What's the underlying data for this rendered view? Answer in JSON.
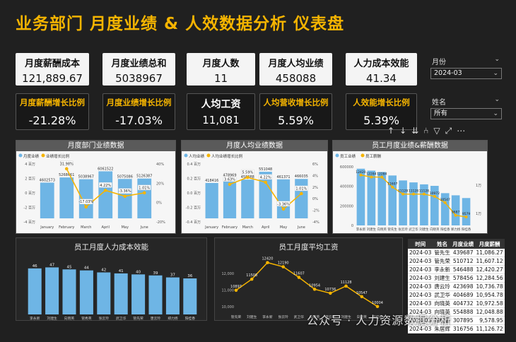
{
  "title": "业务部门 月度业绩 & 人效数据分析 仪表盘",
  "kpis": [
    {
      "label": "月度薪酬成本",
      "value": "121,889.67"
    },
    {
      "label": "月度业绩总和",
      "value": "5038967"
    },
    {
      "label": "月度人数",
      "value": "11"
    },
    {
      "label": "月度人均业绩",
      "value": "458088"
    },
    {
      "label": "人力成本效能",
      "value": "41.34"
    },
    {
      "label": "月度薪酬增长比例",
      "value": "-21.28%"
    },
    {
      "label": "月度业绩增长比例",
      "value": "-17.03%"
    },
    {
      "label": "人均工资",
      "value": "11,081"
    },
    {
      "label": "人均营收增长比例",
      "value": "5.59%"
    },
    {
      "label": "人效能增长比例",
      "value": "5.39%"
    }
  ],
  "slicers": {
    "month": {
      "title": "月份",
      "value": "2024-03"
    },
    "name": {
      "title": "姓名",
      "value": "所有"
    }
  },
  "toolbar_icons": [
    "arrow-up-icon",
    "arrow-down-icon",
    "double-arrow-down-icon",
    "expand-hierarchy-icon",
    "filter-icon",
    "focus-mode-icon",
    "more-options-icon"
  ],
  "panels": {
    "p1": {
      "title": "月度部门业绩数据",
      "legend": [
        "月度业绩",
        "业绩增长比例"
      ]
    },
    "p2": {
      "title": "月度人均业绩数据",
      "legend": [
        "人均业绩",
        "人均业绩增长比例"
      ]
    },
    "p3": {
      "title": "员工月度业绩&薪酬数据",
      "legend": [
        "员工业绩",
        "员工薪酬"
      ]
    },
    "p4": {
      "title": "员工月度人力成本效能"
    },
    "p5": {
      "title": "员工月度平均工资"
    }
  },
  "table": {
    "headers": [
      "时间",
      "姓名",
      "月度业绩",
      "月度薪酬"
    ],
    "rows": [
      [
        "2024-03",
        "管先生",
        "439687",
        "11,086.27"
      ],
      [
        "2024-03",
        "管先荣",
        "510712",
        "11,607.12"
      ],
      [
        "2024-03",
        "李永新",
        "546488",
        "12,420.27"
      ],
      [
        "2024-03",
        "刘建生",
        "578456",
        "12,284.56"
      ],
      [
        "2024-03",
        "唐云玲",
        "423698",
        "10,736.78"
      ],
      [
        "2024-03",
        "武卫华",
        "404689",
        "10,954.78"
      ],
      [
        "2024-03",
        "向晓英",
        "404732",
        "10,972.58"
      ],
      [
        "2024-03",
        "向晓英",
        "554888",
        "12,048.88"
      ],
      [
        "2024-03",
        "阳桂香",
        "307895",
        "9,578.95"
      ],
      [
        "2024-03",
        "朱居辉",
        "316756",
        "11,126.72"
      ]
    ]
  },
  "watermark": "公众号 · 人力资源数据分析",
  "chart_data": [
    {
      "type": "bar",
      "title": "月度部门业绩数据",
      "categories": [
        "January",
        "February",
        "March",
        "April",
        "May",
        "June"
      ],
      "series": [
        {
          "name": "月度业绩",
          "values": [
            4602573,
            5268661,
            5038967,
            6061522,
            5075086,
            5126387
          ]
        },
        {
          "name": "业绩增长比例",
          "values": [
            null,
            31.98,
            -17.03,
            4.22,
            -3.36,
            1.01
          ]
        }
      ],
      "y_ticks_left": [
        "4 百万",
        "2 百万",
        "0 百万",
        "-2 百万",
        "-4 百万"
      ],
      "y_ticks_right": [
        "40%",
        "20%",
        "0%",
        "-20%"
      ],
      "colors": {
        "bar": "#6eb5e5",
        "line": "#f5b400"
      }
    },
    {
      "type": "bar",
      "title": "月度人均业绩数据",
      "categories": [
        "January",
        "February",
        "March",
        "April",
        "May",
        "June"
      ],
      "series": [
        {
          "name": "人均业绩",
          "values": [
            418416,
            478969,
            458088,
            551048,
            461371,
            466035
          ]
        },
        {
          "name": "人均业绩增长比例",
          "values": [
            null,
            3.63,
            5.59,
            4.22,
            -3.36,
            1.01
          ]
        }
      ],
      "y_ticks_left": [
        "0.4 百万",
        "0.2 百万",
        "0.0 百万",
        "-0.2 百万",
        "-0.4 百万"
      ],
      "y_ticks_right": [
        "6%",
        "4%",
        "2%",
        "0%",
        "-2%",
        "-4%"
      ],
      "colors": {
        "bar": "#6eb5e5",
        "line": "#f5b400"
      }
    },
    {
      "type": "bar",
      "title": "员工月度业绩&薪酬数据",
      "categories": [
        "李永新",
        "刘建生",
        "向晓英",
        "管先生",
        "张云玲",
        "武卫华",
        "刘建生",
        "向晓英",
        "阳桂香",
        "郑力扬",
        "阳桂香"
      ],
      "series": [
        {
          "name": "员工业绩",
          "values": [
            580000,
            560000,
            546488,
            510712,
            460000,
            440000,
            420000,
            404732,
            330000,
            307895,
            280000
          ]
        },
        {
          "name": "员工薪酬",
          "values": [
            12420,
            12284,
            12284,
            11607,
            11128,
            11128,
            11128,
            10972,
            10547,
            9687,
            9579
          ]
        }
      ],
      "y_ticks_left": [
        "600000",
        "400000",
        "200000",
        "0"
      ],
      "y_ticks_right": [
        "1万",
        "1万"
      ],
      "colors": {
        "bar": "#6eb5e5",
        "line": "#f5b400"
      }
    },
    {
      "type": "bar",
      "title": "员工月度人力成本效能",
      "categories": [
        "李永新",
        "刘建生",
        "向晓英",
        "管秀英",
        "张云玲",
        "武卫华",
        "管先荣",
        "唐云玲",
        "郑力扬",
        "阳桂香"
      ],
      "values": [
        46,
        47,
        45,
        44,
        42,
        41,
        40,
        39,
        37,
        36
      ],
      "colors": {
        "bar": "#6eb5e5"
      }
    },
    {
      "type": "line",
      "title": "员工月度平均工资",
      "categories": [
        "管先荣",
        "刘建生",
        "李永新",
        "张云玲",
        "武卫华",
        "向晓英",
        "唐云玲",
        "刘建生",
        "向晓英",
        "阳桂香"
      ],
      "values": [
        10897,
        11508,
        12420,
        12190,
        11607,
        10954,
        10736,
        11128,
        10547,
        10004
      ],
      "y_ticks": [
        "12,000",
        "11,000",
        "10,000"
      ],
      "colors": {
        "line": "#f5b400"
      }
    }
  ]
}
